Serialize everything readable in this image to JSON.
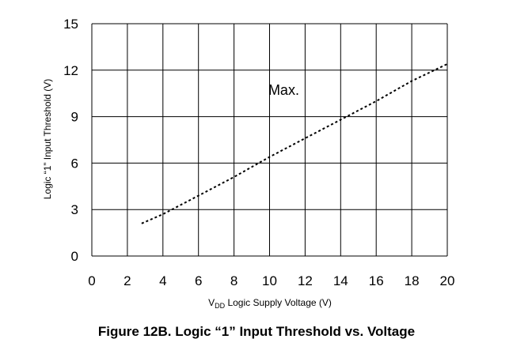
{
  "figure": {
    "caption": "Figure 12B. Logic “1” Input Threshold vs. Voltage"
  },
  "chart_data": {
    "type": "line",
    "title": "",
    "xlabel_sub_prefix": "V",
    "xlabel_sub": "DD",
    "xlabel_rest": " Logic Supply Voltage (V)",
    "ylabel": "Logic “1” Input Threshold (V)",
    "xlim": [
      0,
      20
    ],
    "ylim": [
      0,
      15
    ],
    "x_ticks": [
      0,
      2,
      4,
      6,
      8,
      10,
      12,
      14,
      16,
      18,
      20
    ],
    "y_ticks": [
      0,
      3,
      6,
      9,
      12,
      15
    ],
    "grid": true,
    "series": [
      {
        "name": "Max.",
        "style": "dashed",
        "color": "#000000",
        "x": [
          2.8,
          4,
          6,
          8,
          10,
          12,
          14,
          16,
          18,
          20
        ],
        "y": [
          2.1,
          2.7,
          3.9,
          5.1,
          6.4,
          7.6,
          8.8,
          10.0,
          11.3,
          12.4
        ]
      }
    ],
    "annotations": [
      {
        "text": "Max.",
        "x": 10.8,
        "y": 10.4
      }
    ]
  }
}
